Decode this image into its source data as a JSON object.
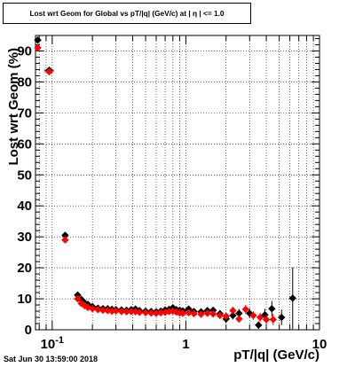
{
  "chart_data": {
    "type": "scatter",
    "title": "Lost wrt Geom for Global vs pT/|q| (GeV/c) at |  η | <= 1.0",
    "xlabel": "pT/|q| (GeV/c)",
    "ylabel": "Lost wrt Geom (%)",
    "x_scale": "log",
    "xlim": [
      0.075,
      10
    ],
    "ylim": [
      0,
      95
    ],
    "grid": true,
    "x_tick_labels": [
      {
        "value": 0.1,
        "label": "10",
        "exponent": "-1"
      },
      {
        "value": 1,
        "label": "1"
      },
      {
        "value": 10,
        "label": "10"
      }
    ],
    "y_ticks": [
      0,
      10,
      20,
      30,
      40,
      50,
      60,
      70,
      80,
      90
    ],
    "series": [
      {
        "color": "#000000",
        "points": [
          {
            "x": 0.078,
            "y": 93.5,
            "xerr": 0.003,
            "yerr": 0
          },
          {
            "x": 0.095,
            "y": 83.8,
            "xerr": 0.008,
            "yerr": 0
          },
          {
            "x": 0.125,
            "y": 30.5,
            "xerr": 0.006,
            "yerr": 0
          },
          {
            "x": 0.155,
            "y": 11.2,
            "xerr": 0.004,
            "yerr": 0
          },
          {
            "x": 0.165,
            "y": 9.8
          },
          {
            "x": 0.175,
            "y": 8.7
          },
          {
            "x": 0.185,
            "y": 8.2
          },
          {
            "x": 0.2,
            "y": 7.5
          },
          {
            "x": 0.22,
            "y": 7.0
          },
          {
            "x": 0.24,
            "y": 6.8
          },
          {
            "x": 0.26,
            "y": 6.8
          },
          {
            "x": 0.28,
            "y": 6.6
          },
          {
            "x": 0.3,
            "y": 6.5
          },
          {
            "x": 0.33,
            "y": 6.4
          },
          {
            "x": 0.36,
            "y": 6.3
          },
          {
            "x": 0.39,
            "y": 6.5
          },
          {
            "x": 0.42,
            "y": 6.7
          },
          {
            "x": 0.45,
            "y": 6.2
          },
          {
            "x": 0.5,
            "y": 6.0
          },
          {
            "x": 0.55,
            "y": 5.9
          },
          {
            "x": 0.6,
            "y": 5.8
          },
          {
            "x": 0.65,
            "y": 6.0
          },
          {
            "x": 0.7,
            "y": 6.4
          },
          {
            "x": 0.75,
            "y": 6.6
          },
          {
            "x": 0.8,
            "y": 7.1
          },
          {
            "x": 0.85,
            "y": 6.5
          },
          {
            "x": 0.9,
            "y": 6.3
          },
          {
            "x": 0.95,
            "y": 6.1
          },
          {
            "x": 1.05,
            "y": 6.7
          },
          {
            "x": 1.15,
            "y": 5.9
          },
          {
            "x": 1.3,
            "y": 5.8
          },
          {
            "x": 1.45,
            "y": 6.2
          },
          {
            "x": 1.6,
            "y": 6.3
          },
          {
            "x": 1.8,
            "y": 5.2
          },
          {
            "x": 2.0,
            "y": 3.5,
            "yerr": 1.2
          },
          {
            "x": 2.25,
            "y": 4.6,
            "yerr": 1.3
          },
          {
            "x": 2.5,
            "y": 5.3,
            "yerr": 1.4
          },
          {
            "x": 3.0,
            "y": 5.3,
            "yerr": 1.6
          },
          {
            "x": 3.5,
            "y": 1.5,
            "yerr": 1.2
          },
          {
            "x": 3.9,
            "y": 4.8,
            "yerr": 2.0
          },
          {
            "x": 4.4,
            "y": 6.8,
            "yerr": 2.5
          },
          {
            "x": 5.2,
            "y": 4.0,
            "yerr": 2.5
          },
          {
            "x": 6.3,
            "y": 10.2,
            "yerr": 10.0
          }
        ]
      },
      {
        "color": "#ff0000",
        "points": [
          {
            "x": 0.078,
            "y": 91.0,
            "xerr": 0.003,
            "yerr": 0
          },
          {
            "x": 0.095,
            "y": 83.3,
            "xerr": 0.008,
            "yerr": 0
          },
          {
            "x": 0.125,
            "y": 29.0,
            "xerr": 0.006,
            "yerr": 0
          },
          {
            "x": 0.155,
            "y": 10.0,
            "xerr": 0.004,
            "yerr": 0
          },
          {
            "x": 0.165,
            "y": 8.5
          },
          {
            "x": 0.175,
            "y": 7.8
          },
          {
            "x": 0.185,
            "y": 7.2
          },
          {
            "x": 0.2,
            "y": 6.8
          },
          {
            "x": 0.22,
            "y": 6.5
          },
          {
            "x": 0.24,
            "y": 6.3
          },
          {
            "x": 0.26,
            "y": 6.2
          },
          {
            "x": 0.28,
            "y": 6.0
          },
          {
            "x": 0.3,
            "y": 6.1
          },
          {
            "x": 0.33,
            "y": 5.9
          },
          {
            "x": 0.36,
            "y": 5.8
          },
          {
            "x": 0.39,
            "y": 5.9
          },
          {
            "x": 0.42,
            "y": 5.8
          },
          {
            "x": 0.45,
            "y": 5.6
          },
          {
            "x": 0.5,
            "y": 5.5
          },
          {
            "x": 0.55,
            "y": 5.4
          },
          {
            "x": 0.6,
            "y": 5.3
          },
          {
            "x": 0.65,
            "y": 5.5
          },
          {
            "x": 0.7,
            "y": 5.6
          },
          {
            "x": 0.75,
            "y": 5.9
          },
          {
            "x": 0.8,
            "y": 6.0
          },
          {
            "x": 0.85,
            "y": 5.7
          },
          {
            "x": 0.9,
            "y": 5.4
          },
          {
            "x": 0.95,
            "y": 5.3
          },
          {
            "x": 1.05,
            "y": 5.5
          },
          {
            "x": 1.15,
            "y": 5.2
          },
          {
            "x": 1.3,
            "y": 5.0
          },
          {
            "x": 1.45,
            "y": 5.3
          },
          {
            "x": 1.6,
            "y": 5.1
          },
          {
            "x": 1.8,
            "y": 4.6
          },
          {
            "x": 2.0,
            "y": 4.4,
            "yerr": 1.0
          },
          {
            "x": 2.25,
            "y": 6.2,
            "yerr": 1.2
          },
          {
            "x": 2.5,
            "y": 3.5,
            "yerr": 1.2
          },
          {
            "x": 2.8,
            "y": 6.6,
            "yerr": 1.4
          },
          {
            "x": 3.2,
            "y": 4.6,
            "yerr": 1.4
          },
          {
            "x": 3.6,
            "y": 4.0,
            "yerr": 1.5
          },
          {
            "x": 4.0,
            "y": 3.3,
            "yerr": 1.6
          },
          {
            "x": 4.5,
            "y": 3.3,
            "yerr": 1.8
          }
        ]
      }
    ]
  },
  "footer": {
    "date": "Sat Jun 30 13:59:00 2018"
  }
}
